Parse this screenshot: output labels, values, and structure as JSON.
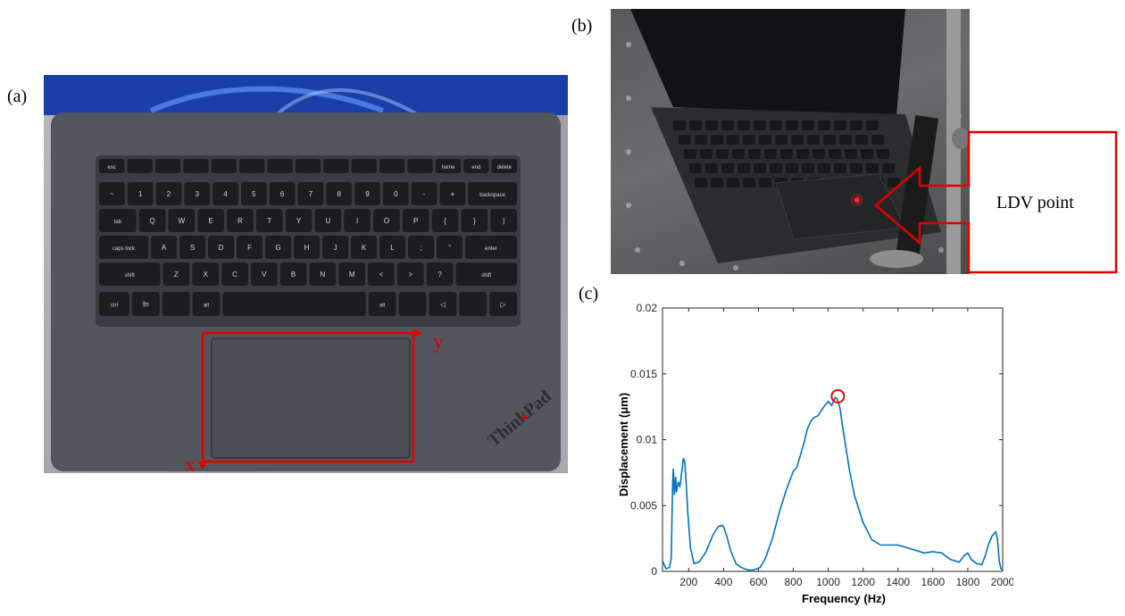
{
  "panels": {
    "a": {
      "letter": "(a)",
      "axis_x": "x",
      "axis_y": "y"
    },
    "b": {
      "letter": "(b)",
      "callout": "LDV point"
    },
    "c": {
      "letter": "(c)"
    }
  },
  "keyboard": {
    "row0": [
      "esc",
      "",
      "",
      "",
      "",
      "",
      "",
      "",
      "",
      "",
      "",
      "",
      "home",
      "end",
      "delete"
    ],
    "row1": [
      "~",
      "1",
      "2",
      "3",
      "4",
      "5",
      "6",
      "7",
      "8",
      "9",
      "0",
      "-",
      "+",
      "backspace"
    ],
    "row2": [
      "tab",
      "Q",
      "W",
      "E",
      "R",
      "T",
      "Y",
      "U",
      "I",
      "O",
      "P",
      "{",
      "}",
      "|"
    ],
    "row3": [
      "caps lock",
      "A",
      "S",
      "D",
      "F",
      "G",
      "H",
      "J",
      "K",
      "L",
      ";",
      "\"",
      "enter"
    ],
    "row4": [
      "shift",
      "Z",
      "X",
      "C",
      "V",
      "B",
      "N",
      "M",
      "<",
      ">",
      "?",
      "shift"
    ],
    "row5": [
      "ctrl",
      "fn",
      "",
      "alt",
      "",
      "alt",
      "",
      "◁",
      "",
      "▷"
    ],
    "brand": "ThinkPad"
  },
  "colors": {
    "line": "#0072BD",
    "highlight": "#ff0000",
    "red": "#e00000"
  },
  "chart_data": {
    "type": "line",
    "xlabel": "Frequency (Hz)",
    "ylabel": "Displacement (μm)",
    "xlim": [
      50,
      2000
    ],
    "ylim": [
      0,
      0.02
    ],
    "xticks": [
      200,
      400,
      600,
      800,
      1000,
      1200,
      1400,
      1600,
      1800,
      2000
    ],
    "yticks": [
      0,
      0.005,
      0.01,
      0.015,
      0.02
    ],
    "ytick_labels": [
      "0",
      "0.005",
      "0.01",
      "0.015",
      "0.02"
    ],
    "grid": false,
    "series": [
      {
        "x": [
          50,
          70,
          90,
          100,
          108,
          112,
          118,
          125,
          130,
          140,
          150,
          160,
          170,
          178,
          185,
          195,
          210,
          230,
          260,
          300,
          340,
          370,
          390,
          400,
          420,
          440,
          470,
          500,
          540,
          570,
          590,
          610,
          640,
          680,
          720,
          760,
          800,
          820,
          840,
          860,
          880,
          900,
          920,
          940,
          960,
          980,
          1000,
          1020,
          1040,
          1050,
          1060,
          1070,
          1080,
          1100,
          1120,
          1150,
          1200,
          1250,
          1300,
          1350,
          1400,
          1450,
          1500,
          1550,
          1600,
          1650,
          1700,
          1750,
          1780,
          1800,
          1820,
          1850,
          1880,
          1900,
          1920,
          1940,
          1960,
          1970,
          1980,
          1990,
          2000
        ],
        "y": [
          0.0008,
          0.0002,
          0.0003,
          0.001,
          0.0065,
          0.0078,
          0.0058,
          0.0072,
          0.006,
          0.0068,
          0.0064,
          0.0075,
          0.0086,
          0.0083,
          0.0068,
          0.0045,
          0.0018,
          0.0006,
          0.0007,
          0.0015,
          0.0028,
          0.0034,
          0.0035,
          0.0034,
          0.0026,
          0.0016,
          0.0006,
          0.0003,
          0.0001,
          0.0001,
          0.0002,
          0.0003,
          0.001,
          0.0025,
          0.0045,
          0.0062,
          0.0076,
          0.0079,
          0.0088,
          0.0097,
          0.0108,
          0.0114,
          0.0117,
          0.0118,
          0.0122,
          0.0126,
          0.0129,
          0.0126,
          0.0132,
          0.0131,
          0.0128,
          0.0122,
          0.0112,
          0.0095,
          0.0078,
          0.0058,
          0.0037,
          0.0024,
          0.002,
          0.002,
          0.002,
          0.0018,
          0.0016,
          0.0014,
          0.0015,
          0.0014,
          0.0009,
          0.0007,
          0.0012,
          0.0014,
          0.0009,
          0.0006,
          0.0005,
          0.0012,
          0.0021,
          0.0027,
          0.003,
          0.0025,
          0.0008,
          0.0002,
          0.0001
        ]
      }
    ],
    "annotation": {
      "type": "circle",
      "x": 1055,
      "y": 0.0133
    }
  }
}
